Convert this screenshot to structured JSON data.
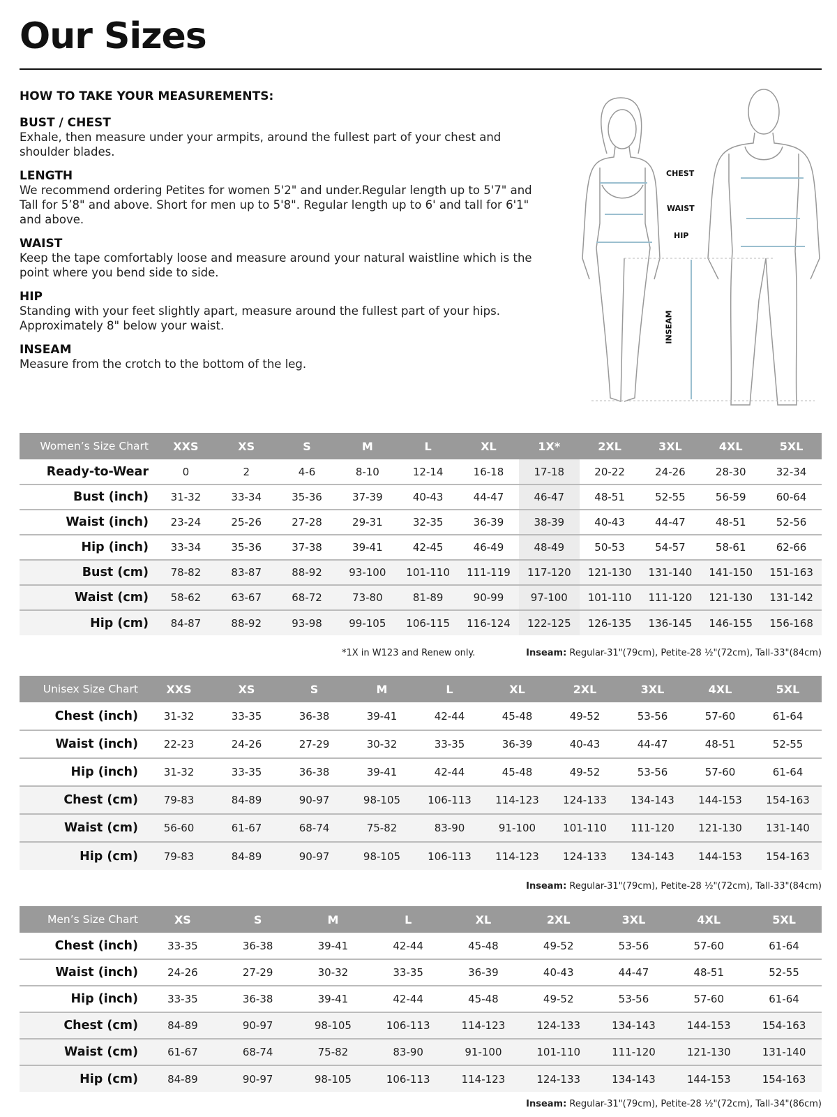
{
  "title": "Our Sizes",
  "guide": {
    "heading": "HOW TO TAKE YOUR MEASUREMENTS:",
    "sections": [
      {
        "title": "BUST / CHEST",
        "text": "Exhale, then measure under your armpits, around the fullest part of your chest and shoulder blades."
      },
      {
        "title": "LENGTH",
        "text": "We recommend ordering Petites for women 5'2\" and under.Regular length up to 5'7\" and Tall for 5’8\" and above. Short for men up to 5'8\". Regular length up to 6' and tall for 6'1\" and above."
      },
      {
        "title": "WAIST",
        "text": "Keep the tape comfortably loose and measure around your natural waistline which is the point where you bend side to side."
      },
      {
        "title": "HIP",
        "text": "Standing with your feet slightly apart, measure around the fullest part of your hips. Approximately 8\" below your waist."
      },
      {
        "title": "INSEAM",
        "text": "Measure from the crotch to the bottom of the leg."
      }
    ]
  },
  "figure_labels": {
    "chest": "CHEST",
    "waist": "WAIST",
    "hip": "HIP",
    "inseam": "INSEAM"
  },
  "colors": {
    "header_bg": "#9a9a9a",
    "measure_line": "#9bbfcf"
  },
  "tables": [
    {
      "title": "Women’s Size Chart",
      "sizes": [
        "XXS",
        "XS",
        "S",
        "M",
        "L",
        "XL",
        "1X*",
        "2XL",
        "3XL",
        "4XL",
        "5XL"
      ],
      "highlight_col": 6,
      "rows": [
        {
          "label": "Ready-to-Wear",
          "values": [
            "0",
            "2",
            "4-6",
            "8-10",
            "12-14",
            "16-18",
            "17-18",
            "20-22",
            "24-26",
            "28-30",
            "32-34"
          ]
        },
        {
          "label": "Bust (inch)",
          "values": [
            "31-32",
            "33-34",
            "35-36",
            "37-39",
            "40-43",
            "44-47",
            "46-47",
            "48-51",
            "52-55",
            "56-59",
            "60-64"
          ]
        },
        {
          "label": "Waist (inch)",
          "values": [
            "23-24",
            "25-26",
            "27-28",
            "29-31",
            "32-35",
            "36-39",
            "38-39",
            "40-43",
            "44-47",
            "48-51",
            "52-56"
          ]
        },
        {
          "label": "Hip (inch)",
          "values": [
            "33-34",
            "35-36",
            "37-38",
            "39-41",
            "42-45",
            "46-49",
            "48-49",
            "50-53",
            "54-57",
            "58-61",
            "62-66"
          ]
        },
        {
          "label": "Bust (cm)",
          "values": [
            "78-82",
            "83-87",
            "88-92",
            "93-100",
            "101-110",
            "111-119",
            "117-120",
            "121-130",
            "131-140",
            "141-150",
            "151-163"
          ]
        },
        {
          "label": "Waist (cm)",
          "values": [
            "58-62",
            "63-67",
            "68-72",
            "73-80",
            "81-89",
            "90-99",
            "97-100",
            "101-110",
            "111-120",
            "121-130",
            "131-142"
          ]
        },
        {
          "label": "Hip (cm)",
          "values": [
            "84-87",
            "88-92",
            "93-98",
            "99-105",
            "106-115",
            "116-124",
            "122-125",
            "126-135",
            "136-145",
            "146-155",
            "156-168"
          ]
        }
      ],
      "footnote": "*1X in W123 and Renew only.",
      "inseam_label": "Inseam:",
      "inseam_text": " Regular-31\"(79cm), Petite-28 ½\"(72cm), Tall-33\"(84cm)"
    },
    {
      "title": "Unisex Size Chart",
      "sizes": [
        "XXS",
        "XS",
        "S",
        "M",
        "L",
        "XL",
        "2XL",
        "3XL",
        "4XL",
        "5XL"
      ],
      "rows": [
        {
          "label": "Chest (inch)",
          "values": [
            "31-32",
            "33-35",
            "36-38",
            "39-41",
            "42-44",
            "45-48",
            "49-52",
            "53-56",
            "57-60",
            "61-64"
          ]
        },
        {
          "label": "Waist (inch)",
          "values": [
            "22-23",
            "24-26",
            "27-29",
            "30-32",
            "33-35",
            "36-39",
            "40-43",
            "44-47",
            "48-51",
            "52-55"
          ]
        },
        {
          "label": "Hip (inch)",
          "values": [
            "31-32",
            "33-35",
            "36-38",
            "39-41",
            "42-44",
            "45-48",
            "49-52",
            "53-56",
            "57-60",
            "61-64"
          ]
        },
        {
          "label": "Chest (cm)",
          "values": [
            "79-83",
            "84-89",
            "90-97",
            "98-105",
            "106-113",
            "114-123",
            "124-133",
            "134-143",
            "144-153",
            "154-163"
          ]
        },
        {
          "label": "Waist (cm)",
          "values": [
            "56-60",
            "61-67",
            "68-74",
            "75-82",
            "83-90",
            "91-100",
            "101-110",
            "111-120",
            "121-130",
            "131-140"
          ]
        },
        {
          "label": "Hip (cm)",
          "values": [
            "79-83",
            "84-89",
            "90-97",
            "98-105",
            "106-113",
            "114-123",
            "124-133",
            "134-143",
            "144-153",
            "154-163"
          ]
        }
      ],
      "inseam_label": "Inseam:",
      "inseam_text": " Regular-31\"(79cm), Petite-28 ½\"(72cm), Tall-33\"(84cm)"
    },
    {
      "title": "Men’s Size Chart",
      "sizes": [
        "XS",
        "S",
        "M",
        "L",
        "XL",
        "2XL",
        "3XL",
        "4XL",
        "5XL"
      ],
      "rows": [
        {
          "label": "Chest (inch)",
          "values": [
            "33-35",
            "36-38",
            "39-41",
            "42-44",
            "45-48",
            "49-52",
            "53-56",
            "57-60",
            "61-64"
          ]
        },
        {
          "label": "Waist (inch)",
          "values": [
            "24-26",
            "27-29",
            "30-32",
            "33-35",
            "36-39",
            "40-43",
            "44-47",
            "48-51",
            "52-55"
          ]
        },
        {
          "label": "Hip (inch)",
          "values": [
            "33-35",
            "36-38",
            "39-41",
            "42-44",
            "45-48",
            "49-52",
            "53-56",
            "57-60",
            "61-64"
          ]
        },
        {
          "label": "Chest (cm)",
          "values": [
            "84-89",
            "90-97",
            "98-105",
            "106-113",
            "114-123",
            "124-133",
            "134-143",
            "144-153",
            "154-163"
          ]
        },
        {
          "label": "Waist (cm)",
          "values": [
            "61-67",
            "68-74",
            "75-82",
            "83-90",
            "91-100",
            "101-110",
            "111-120",
            "121-130",
            "131-140"
          ]
        },
        {
          "label": "Hip (cm)",
          "values": [
            "84-89",
            "90-97",
            "98-105",
            "106-113",
            "114-123",
            "124-133",
            "134-143",
            "144-153",
            "154-163"
          ]
        }
      ],
      "inseam_label": "Inseam:",
      "inseam_text": " Regular-31\"(79cm), Petite-28 ½\"(72cm), Tall-34\"(86cm)"
    }
  ]
}
